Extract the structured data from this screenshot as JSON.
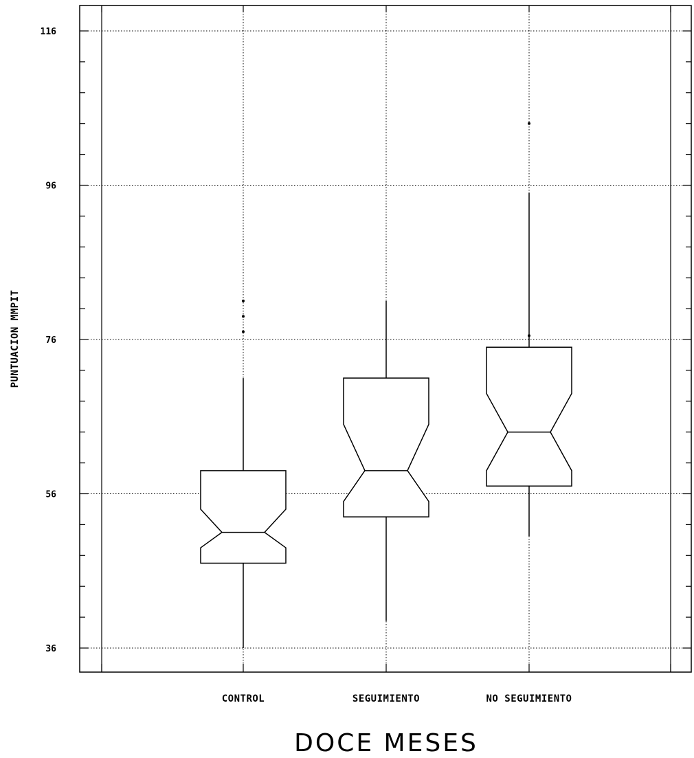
{
  "chart_data": {
    "type": "boxplot",
    "notched": true,
    "xlabel": "DOCE MESES",
    "ylabel": "PUNTUACION MMPIT",
    "ylim": [
      36,
      116
    ],
    "yticks": [
      36,
      56,
      76,
      96,
      116
    ],
    "grid": true,
    "categories": [
      "CONTROL",
      "SEGUIMIENTO",
      "NO SEGUIMIENTO"
    ],
    "boxes": [
      {
        "category": "CONTROL",
        "whisker_low": 36,
        "q1": 47,
        "notch_low": 49,
        "median": 51,
        "notch_high": 54,
        "q3": 59,
        "whisker_high": 71,
        "outliers": [
          77,
          79,
          81
        ]
      },
      {
        "category": "SEGUIMIENTO",
        "whisker_low": 39.5,
        "q1": 53,
        "notch_low": 55,
        "median": 59,
        "notch_high": 65,
        "q3": 71,
        "whisker_high": 81
      },
      {
        "category": "NO SEGUIMIENTO",
        "whisker_low": 50.5,
        "q1": 57,
        "notch_low": 59,
        "median": 64,
        "notch_high": 69,
        "q3": 75,
        "whisker_high": 95,
        "outliers": [
          76.5,
          104
        ]
      }
    ]
  }
}
